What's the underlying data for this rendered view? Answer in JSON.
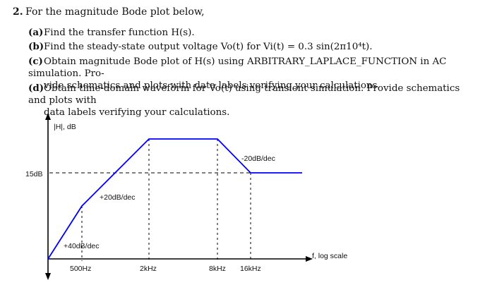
{
  "question": {
    "number": "2.",
    "intro": "For the magnitude Bode plot below,",
    "parts": [
      {
        "label": "(a)",
        "text": "Find the transfer function H(s)."
      },
      {
        "label": "(b)",
        "text": "Find the steady-state output voltage Vo(t) for Vi(t) = 0.3 sin(2π10⁴t)."
      },
      {
        "label": "(c)",
        "line1": "Obtain magnitude Bode plot of H(s) using ARBITRARY_LAPLACE_FUNCTION in AC simulation. Pro-",
        "line2": "vide schematics and plots with data labels verifying your calculations."
      },
      {
        "label": "(d)",
        "line1": "Obtain time-domain waveform for Vo(t) using transient simulation. Provide schematics and plots with",
        "line2": "data labels verifying your calculations."
      }
    ]
  },
  "chart_data": {
    "type": "line",
    "ylabel": "|H|, dB",
    "xlabel": "f, log scale",
    "x_ticks": [
      "500Hz",
      "2kHz",
      "8kHz",
      "16kHz"
    ],
    "y_ticks": [
      "15dB"
    ],
    "annotations": [
      "+40dB/dec",
      "+20dB/dec",
      "-20dB/dec"
    ],
    "points": [
      {
        "f": 250,
        "slope_label": ""
      },
      {
        "f": 500
      },
      {
        "f": 2000
      },
      {
        "f": 8000
      },
      {
        "f": 16000
      },
      {
        "f": 32000
      }
    ],
    "level_15dB": 15,
    "colors": {
      "trace": "#0000ff",
      "axes": "#000000"
    }
  }
}
